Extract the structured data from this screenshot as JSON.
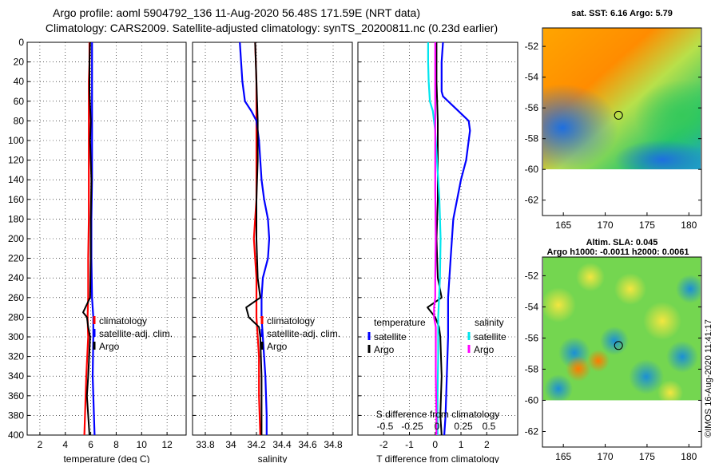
{
  "header": {
    "line1": "Argo profile: aoml 5904792_136 11-Aug-2020 56.48S 171.59E (NRT data)",
    "line2": "Climatology: CARS2009. Satellite-adjusted climatology: synTS_20200811.nc (0.23d earlier)"
  },
  "colors": {
    "climatology": "#ff0000",
    "satellite": "#0000ff",
    "argo": "#000000",
    "sal_satellite": "#00e5ee",
    "sal_argo": "#ff00ff"
  },
  "chart_data": [
    {
      "type": "line",
      "name": "temperature",
      "xlabel": "temperature (deg C)",
      "ylabel": "",
      "xlim": [
        1,
        13.5
      ],
      "ylim": [
        400,
        0
      ],
      "xticks": [
        2,
        4,
        6,
        8,
        10,
        12
      ],
      "yticks": [
        0,
        20,
        40,
        60,
        80,
        100,
        120,
        140,
        160,
        180,
        200,
        220,
        240,
        260,
        280,
        300,
        320,
        340,
        360,
        380,
        400
      ],
      "legend": [
        "climatology",
        "satellite-adj. clim.",
        "Argo"
      ],
      "series": [
        {
          "name": "climatology",
          "color": "#ff0000",
          "depth": [
            0,
            20,
            40,
            60,
            80,
            100,
            140,
            180,
            220,
            260,
            280,
            300,
            340,
            360,
            380,
            400
          ],
          "values": [
            5.9,
            5.9,
            5.85,
            5.85,
            5.85,
            5.85,
            5.85,
            5.85,
            5.8,
            5.8,
            5.75,
            5.8,
            5.65,
            5.6,
            5.55,
            5.5
          ]
        },
        {
          "name": "satellite-adj. clim.",
          "color": "#0000ff",
          "depth": [
            0,
            20,
            40,
            60,
            80,
            100,
            140,
            180,
            220,
            260,
            280,
            300,
            340,
            360,
            380,
            400
          ],
          "values": [
            6.1,
            6.1,
            6.1,
            6.1,
            6.1,
            6.1,
            6.1,
            6.05,
            6.05,
            6.1,
            6.2,
            6.2,
            6.15,
            6.2,
            6.25,
            6.3
          ]
        },
        {
          "name": "Argo",
          "color": "#000000",
          "depth": [
            0,
            20,
            50,
            80,
            100,
            140,
            180,
            220,
            260,
            275,
            280,
            290,
            300,
            340,
            360,
            380,
            400
          ],
          "values": [
            5.95,
            5.9,
            5.9,
            6.0,
            5.95,
            6.05,
            6.0,
            6.0,
            5.95,
            5.4,
            5.7,
            5.8,
            5.95,
            5.8,
            5.7,
            5.8,
            5.9
          ]
        }
      ]
    },
    {
      "type": "line",
      "name": "salinity",
      "xlabel": "salinity",
      "ylabel": "",
      "xlim": [
        33.7,
        34.95
      ],
      "ylim": [
        400,
        0
      ],
      "xticks": [
        33.8,
        34,
        34.2,
        34.4,
        34.6,
        34.8
      ],
      "legend": [
        "climatology",
        "satellite-adj. clim.",
        "Argo"
      ],
      "series": [
        {
          "name": "climatology",
          "color": "#ff0000",
          "depth": [
            0,
            40,
            80,
            120,
            160,
            200,
            240,
            280,
            320,
            360,
            400
          ],
          "values": [
            34.19,
            34.2,
            34.2,
            34.2,
            34.2,
            34.18,
            34.2,
            34.2,
            34.22,
            34.22,
            34.23
          ]
        },
        {
          "name": "satellite-adj. clim.",
          "color": "#0000ff",
          "depth": [
            0,
            20,
            40,
            60,
            70,
            80,
            100,
            120,
            140,
            160,
            180,
            200,
            220,
            240,
            260,
            280,
            300,
            340,
            380,
            400
          ],
          "values": [
            34.07,
            34.08,
            34.09,
            34.11,
            34.16,
            34.2,
            34.22,
            34.23,
            34.24,
            34.26,
            34.29,
            34.3,
            34.29,
            34.25,
            34.24,
            34.24,
            34.25,
            34.27,
            34.28,
            34.28
          ]
        },
        {
          "name": "Argo",
          "color": "#000000",
          "depth": [
            0,
            40,
            80,
            120,
            160,
            200,
            240,
            260,
            270,
            280,
            290,
            300,
            340,
            380,
            400
          ],
          "values": [
            34.19,
            34.2,
            34.21,
            34.21,
            34.2,
            34.2,
            34.21,
            34.23,
            34.12,
            34.14,
            34.22,
            34.23,
            34.24,
            34.24,
            34.24
          ]
        }
      ]
    },
    {
      "type": "line",
      "name": "differences",
      "xlabel": "T difference from climatology",
      "xlabel2": "S difference from climatology",
      "xlim": [
        -3,
        3.2
      ],
      "ylim": [
        400,
        0
      ],
      "xticks": [
        -2,
        -1,
        0,
        1,
        2
      ],
      "xticks2": [
        -0.5,
        -0.25,
        0,
        0.25,
        0.5
      ],
      "xticks2_labels": [
        "-0.5",
        "-0.25",
        "0",
        "0.25",
        "0.5"
      ],
      "legend_titles": [
        "temperature",
        "salinity"
      ],
      "legend": [
        "satellite",
        "Argo",
        "satellite",
        "Argo"
      ],
      "series": [
        {
          "name": "T satellite",
          "color": "#0000ff",
          "depth": [
            0,
            20,
            50,
            55,
            70,
            80,
            90,
            100,
            120,
            140,
            180,
            220,
            260,
            300,
            340,
            380,
            400
          ],
          "values": [
            0.3,
            0.25,
            0.25,
            0.3,
            0.9,
            1.3,
            1.35,
            1.3,
            1.2,
            1.0,
            0.7,
            0.6,
            0.5,
            0.5,
            0.45,
            0.4,
            0.35
          ]
        },
        {
          "name": "T Argo",
          "color": "#000000",
          "depth": [
            0,
            40,
            80,
            120,
            160,
            200,
            240,
            260,
            270,
            280,
            290,
            300,
            340,
            380,
            400
          ],
          "values": [
            0.05,
            0.05,
            0.1,
            0.1,
            0.1,
            0.05,
            0.1,
            0.25,
            -0.3,
            0.0,
            0.15,
            0.2,
            0.25,
            0.2,
            0.25
          ]
        },
        {
          "name": "S satellite",
          "color": "#00e5ee",
          "depth": [
            0,
            20,
            40,
            60,
            70,
            90,
            120,
            160,
            200,
            240,
            280,
            320,
            360,
            400
          ],
          "values": [
            -0.12,
            -0.12,
            -0.11,
            -0.09,
            -0.04,
            0.0,
            0.03,
            0.07,
            0.09,
            0.08,
            0.05,
            0.05,
            0.04,
            0.04
          ]
        },
        {
          "name": "S Argo",
          "color": "#ff00ff",
          "depth": [
            0,
            40,
            80,
            120,
            150,
            200,
            240,
            260,
            270,
            280,
            290,
            300,
            340,
            380,
            400
          ],
          "values": [
            0.0,
            0.0,
            0.0,
            0.0,
            0.0,
            0.01,
            0.0,
            0.0,
            -0.02,
            -0.02,
            0.01,
            0.01,
            0.01,
            0.02,
            0.02
          ]
        }
      ]
    },
    {
      "type": "heatmap",
      "name": "sst-map",
      "title": "sat. SST: 6.16 Argo: 5.79",
      "xticks": [
        165,
        170,
        175,
        180
      ],
      "yticks": [
        -52,
        -54,
        -56,
        -58,
        -60,
        -62
      ],
      "xlim": [
        162.5,
        181.5
      ],
      "ylim": [
        -63,
        -50.8
      ],
      "data_bottom_lat": -60,
      "marker": {
        "lon": 171.59,
        "lat": -56.48
      }
    },
    {
      "type": "heatmap",
      "name": "sla-map",
      "title": "Altim. SLA: 0.045",
      "subtitle": "Argo h1000: -0.0011 h2000: 0.0061",
      "xticks": [
        165,
        170,
        175,
        180
      ],
      "yticks": [
        -52,
        -54,
        -56,
        -58,
        -60,
        -62
      ],
      "xlim": [
        162.5,
        181.5
      ],
      "ylim": [
        -63,
        -50.8
      ],
      "data_bottom_lat": -60,
      "marker": {
        "lon": 171.59,
        "lat": -56.48
      }
    }
  ],
  "watermark": "©IMOS 16-Aug-2020 11:41:17"
}
